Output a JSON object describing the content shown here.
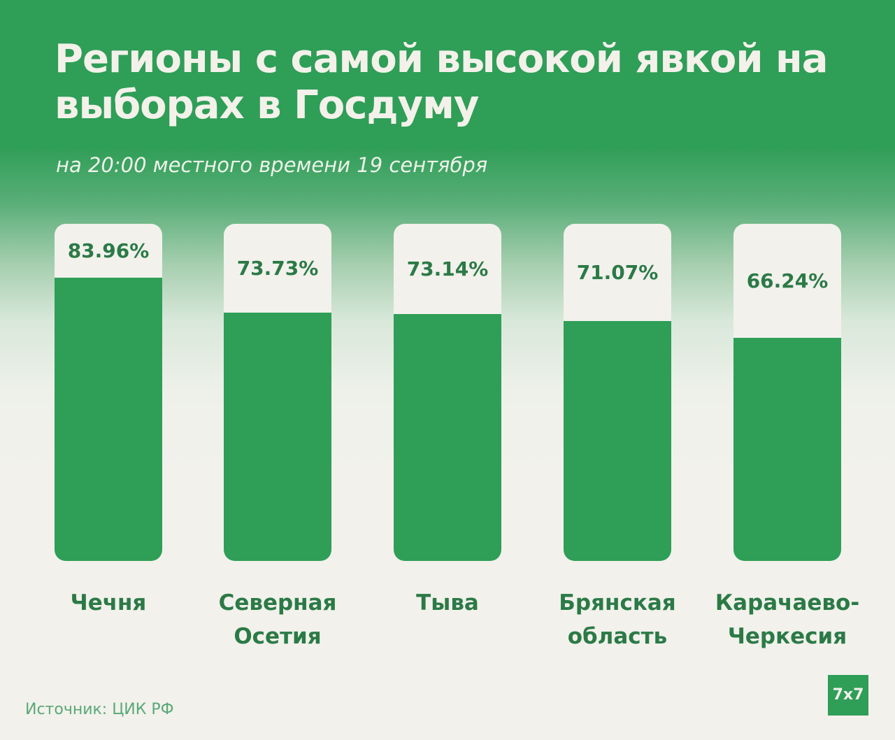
{
  "title": "Регионы с самой высокой явкой на выборах в Госдуму",
  "subtitle": "на 20:00 местного времени 19 сентября",
  "source": "Источник: ЦИК РФ",
  "logo_text": "7x7",
  "colors": {
    "accent": "#2f9e57",
    "label_text": "#2b7a46",
    "background": "#f2f1ec"
  },
  "chart_data": {
    "type": "bar",
    "title": "Регионы с самой высокой явкой на выборах в Госдуму",
    "subtitle": "на 20:00 местного времени 19 сентября",
    "categories": [
      "Чечня",
      "Северная\nОсетия",
      "Тыва",
      "Брянская\nобласть",
      "Карачаево-\nЧеркесия"
    ],
    "values": [
      83.96,
      73.73,
      73.14,
      71.07,
      66.24
    ],
    "value_labels": [
      "83.96%",
      "73.73%",
      "73.14%",
      "71.07%",
      "66.24%"
    ],
    "unit": "%",
    "ylim": [
      0,
      100
    ],
    "grid": false,
    "legend": "none"
  }
}
